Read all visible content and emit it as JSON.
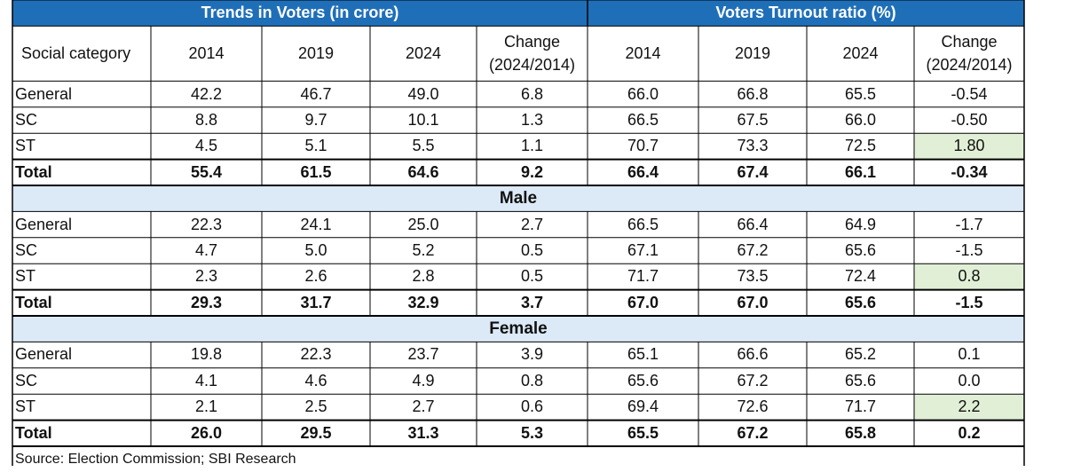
{
  "chart_data": {
    "type": "table",
    "group_headers": [
      "Trends in Voters (in crore)",
      "Voters Turnout ratio (%)"
    ],
    "columns": [
      "Social category",
      "2014",
      "2019",
      "2024",
      "Change\n(2024/2014)",
      "2014",
      "2019",
      "2024",
      "Change\n(2024/2014)"
    ],
    "sections": [
      {
        "name": "",
        "rows": [
          {
            "label": "General",
            "values": [
              "42.2",
              "46.7",
              "49.0",
              "6.8",
              "66.0",
              "66.8",
              "65.5",
              "-0.54"
            ]
          },
          {
            "label": "SC",
            "values": [
              "8.8",
              "9.7",
              "10.1",
              "1.3",
              "66.5",
              "67.5",
              "66.0",
              "-0.50"
            ]
          },
          {
            "label": "ST",
            "values": [
              "4.5",
              "5.1",
              "5.5",
              "1.1",
              "70.7",
              "73.3",
              "72.5",
              "1.80"
            ],
            "highlight_last": true
          },
          {
            "label": "Total",
            "values": [
              "55.4",
              "61.5",
              "64.6",
              "9.2",
              "66.4",
              "67.4",
              "66.1",
              "-0.34"
            ],
            "total": true
          }
        ]
      },
      {
        "name": "Male",
        "rows": [
          {
            "label": "General",
            "values": [
              "22.3",
              "24.1",
              "25.0",
              "2.7",
              "66.5",
              "66.4",
              "64.9",
              "-1.7"
            ]
          },
          {
            "label": "SC",
            "values": [
              "4.7",
              "5.0",
              "5.2",
              "0.5",
              "67.1",
              "67.2",
              "65.6",
              "-1.5"
            ]
          },
          {
            "label": "ST",
            "values": [
              "2.3",
              "2.6",
              "2.8",
              "0.5",
              "71.7",
              "73.5",
              "72.4",
              "0.8"
            ],
            "highlight_last": true
          },
          {
            "label": "Total",
            "values": [
              "29.3",
              "31.7",
              "32.9",
              "3.7",
              "67.0",
              "67.0",
              "65.6",
              "-1.5"
            ],
            "total": true
          }
        ]
      },
      {
        "name": "Female",
        "rows": [
          {
            "label": "General",
            "values": [
              "19.8",
              "22.3",
              "23.7",
              "3.9",
              "65.1",
              "66.6",
              "65.2",
              "0.1"
            ]
          },
          {
            "label": "SC",
            "values": [
              "4.1",
              "4.6",
              "4.9",
              "0.8",
              "65.6",
              "67.2",
              "65.6",
              "0.0"
            ]
          },
          {
            "label": "ST",
            "values": [
              "2.1",
              "2.5",
              "2.7",
              "0.6",
              "69.4",
              "72.6",
              "71.7",
              "2.2"
            ],
            "highlight_last": true
          },
          {
            "label": "Total",
            "values": [
              "26.0",
              "29.5",
              "31.3",
              "5.3",
              "65.5",
              "67.2",
              "65.8",
              "0.2"
            ],
            "total": true
          }
        ]
      }
    ],
    "source": "Source: Election Commission; SBI Research"
  },
  "colors": {
    "title_bg": "#1f6fb8",
    "section_bg": "#dce9f7",
    "highlight_bg": "#e1efd6"
  }
}
